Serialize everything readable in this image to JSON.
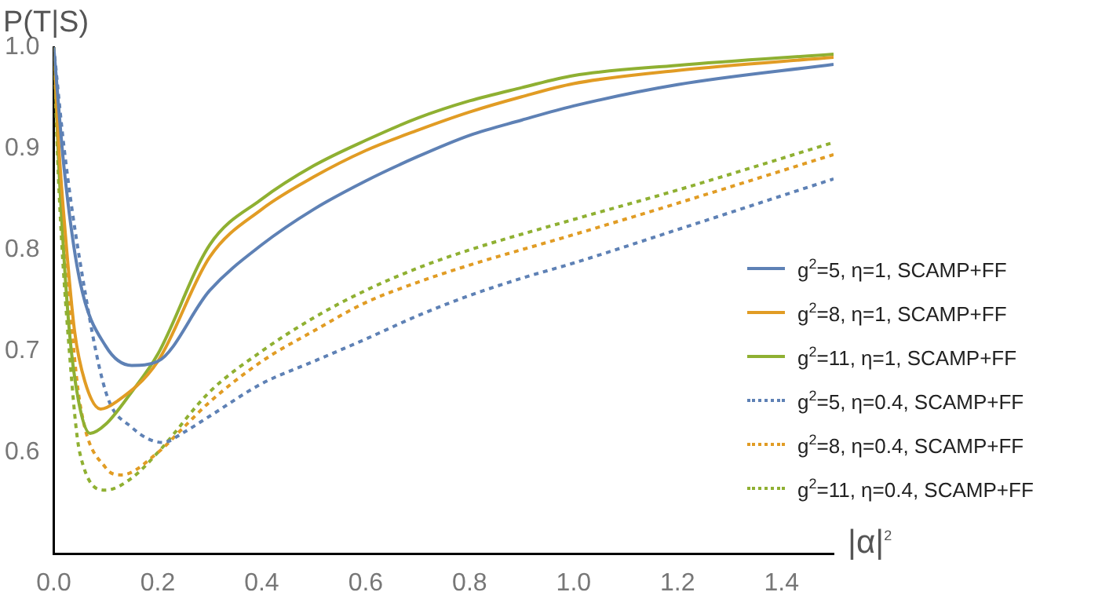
{
  "chart_data": {
    "type": "line",
    "ylabel": "P(T|S)",
    "xlabel": "|α|$^{2}$",
    "xlim": [
      0,
      1.5
    ],
    "ylim": [
      0.5,
      1.0
    ],
    "xticks": [
      {
        "value": 0,
        "label": "0.0"
      },
      0.2,
      0.4,
      0.6,
      0.8,
      {
        "value": 1,
        "label": "1.0"
      },
      1.2,
      1.4
    ],
    "yticks": [
      0.6,
      0.7,
      0.8,
      0.9,
      {
        "value": 1,
        "label": "1.0"
      }
    ],
    "grid": false,
    "legend": "right",
    "marker": "none",
    "series": [
      {
        "name": "g$^{2}$=5, η=1, SCAMP+FF",
        "color": "#5e81b5",
        "line_style": "solid",
        "x": [
          0,
          0.02,
          0.05,
          0.1,
          0.15,
          0.2,
          0.3,
          0.4,
          0.5,
          0.6,
          0.7,
          0.8,
          0.9,
          1.0,
          1.2,
          1.5
        ],
        "values": [
          1.0,
          0.88,
          0.77,
          0.705,
          0.686,
          0.69,
          0.76,
          0.805,
          0.84,
          0.868,
          0.892,
          0.913,
          0.928,
          0.942,
          0.963,
          0.983
        ]
      },
      {
        "name": "g$^{2}$=8, η=1, SCAMP+FF",
        "color": "#e19c24",
        "line_style": "solid",
        "x": [
          0,
          0.01,
          0.02,
          0.04,
          0.06,
          0.09,
          0.12,
          0.2,
          0.3,
          0.4,
          0.5,
          0.6,
          0.7,
          0.8,
          0.9,
          1.0,
          1.2,
          1.5
        ],
        "values": [
          1.0,
          0.9,
          0.83,
          0.72,
          0.67,
          0.643,
          0.65,
          0.69,
          0.793,
          0.84,
          0.872,
          0.898,
          0.918,
          0.936,
          0.951,
          0.964,
          0.977,
          0.99
        ]
      },
      {
        "name": "g$^{2}$=11, η=1, SCAMP+FF",
        "color": "#8fb032",
        "line_style": "solid",
        "x": [
          0,
          0.01,
          0.03,
          0.05,
          0.07,
          0.1,
          0.15,
          0.2,
          0.3,
          0.4,
          0.5,
          0.6,
          0.7,
          0.8,
          0.9,
          1.0,
          1.2,
          1.5
        ],
        "values": [
          1.0,
          0.88,
          0.72,
          0.645,
          0.619,
          0.628,
          0.66,
          0.697,
          0.805,
          0.85,
          0.883,
          0.908,
          0.93,
          0.947,
          0.96,
          0.972,
          0.982,
          0.993
        ]
      },
      {
        "name": "g$^{2}$=5, η=0.4, SCAMP+FF",
        "color": "#5e81b5",
        "line_style": "dotted",
        "x": [
          0,
          0.02,
          0.05,
          0.1,
          0.15,
          0.21,
          0.25,
          0.3,
          0.4,
          0.5,
          0.6,
          0.7,
          0.8,
          0.9,
          1.0,
          1.2,
          1.5
        ],
        "values": [
          1.0,
          0.9,
          0.79,
          0.66,
          0.625,
          0.61,
          0.62,
          0.636,
          0.668,
          0.69,
          0.712,
          0.735,
          0.755,
          0.772,
          0.787,
          0.82,
          0.87
        ]
      },
      {
        "name": "g$^{2}$=8, η=0.4, SCAMP+FF",
        "color": "#e19c24",
        "line_style": "dotted",
        "x": [
          0,
          0.01,
          0.03,
          0.05,
          0.1,
          0.13,
          0.2,
          0.25,
          0.3,
          0.4,
          0.5,
          0.6,
          0.7,
          0.8,
          1.0,
          1.2,
          1.5
        ],
        "values": [
          1.0,
          0.88,
          0.75,
          0.65,
          0.585,
          0.578,
          0.6,
          0.625,
          0.65,
          0.69,
          0.72,
          0.748,
          0.768,
          0.785,
          0.815,
          0.846,
          0.894
        ]
      },
      {
        "name": "g$^{2}$=11, η=0.4, SCAMP+FF",
        "color": "#8fb032",
        "line_style": "dotted",
        "x": [
          0,
          0.01,
          0.03,
          0.05,
          0.1,
          0.15,
          0.2,
          0.3,
          0.4,
          0.5,
          0.6,
          0.7,
          0.8,
          1.0,
          1.2,
          1.5
        ],
        "values": [
          1.0,
          0.86,
          0.7,
          0.6,
          0.563,
          0.575,
          0.6,
          0.66,
          0.7,
          0.733,
          0.76,
          0.782,
          0.8,
          0.83,
          0.859,
          0.906
        ]
      }
    ]
  }
}
